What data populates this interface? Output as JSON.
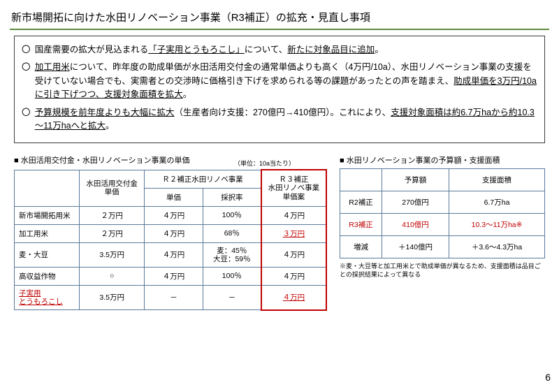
{
  "title": "新市場開拓に向けた水田リノベーション事業（R3補正）の拡充・見直し事項",
  "bullets": {
    "b1_pre": "国産需要の拡大が見込まれる",
    "b1_u": "「子実用とうもろこし」",
    "b1_mid": "について、",
    "b1_u2": "新たに対象品目に追加",
    "b1_post": "。",
    "b2_u1": "加工用米",
    "b2_a": "について、昨年度の助成単価が水田活用交付金の通常単価よりも高く（4万円/10a）、水田リノベーション事業の支援を受けていない場合でも、実需者との交渉時に価格引き下げを求められる等の課題があったとの声を踏まえ、",
    "b2_u2": "助成単価を3万円/10aに引き下げつつ、支援対象面積を拡大",
    "b2_b": "。",
    "b3_u1": "予算規模を前年度よりも大幅に拡大",
    "b3_a": "（生産者向け支援：270億円→410億円）。これにより、",
    "b3_u2": "支援対象面積は約6.7万haから約10.3～11万haへと拡大",
    "b3_b": "。"
  },
  "left": {
    "title": "■ 水田活用交付金・水田リノベーション事業の単価",
    "unit": "（単位：10a当たり）",
    "table": {
      "hd_kofukin": "水田活用交付金\n単価",
      "hd_r2": "Ｒ２補正水田リノベ事業",
      "hd_tanka": "単価",
      "hd_saitaku": "採択率",
      "hd_r3": "Ｒ３補正\n水田リノベ事業\n単価案",
      "rows": [
        {
          "name": "新市場開拓用米",
          "a": "２万円",
          "b": "４万円",
          "c": "100％",
          "d": "４万円",
          "red": false,
          "rowred": false
        },
        {
          "name": "加工用米",
          "a": "２万円",
          "b": "４万円",
          "c": "68％",
          "d": "３万円",
          "red": true,
          "rowred": false
        },
        {
          "name": "麦・大豆",
          "a": "3.5万円",
          "b": "４万円",
          "c": "麦：45％\n大豆：59％",
          "d": "４万円",
          "red": false,
          "rowred": false
        },
        {
          "name": "高収益作物",
          "a": "○",
          "b": "４万円",
          "c": "100％",
          "d": "４万円",
          "red": false,
          "rowred": false
        },
        {
          "name": "子実用\nとうもろこし",
          "a": "3.5万円",
          "b": "－",
          "c": "－",
          "d": "４万円",
          "red": true,
          "rowred": true
        }
      ]
    }
  },
  "right": {
    "title": "■ 水田リノベーション事業の予算額・支援面積",
    "table": {
      "hd_yosan": "予算額",
      "hd_menseki": "支援面積",
      "rows": [
        {
          "name": "R2補正",
          "a": "270億円",
          "b": "6.7万ha",
          "red": false
        },
        {
          "name": "R3補正",
          "a": "410億円",
          "b": "10.3～11万ha※",
          "red": true
        },
        {
          "name": "増減",
          "a": "＋140億円",
          "b": "＋3.6～4.3万ha",
          "red": false
        }
      ]
    },
    "note": "※麦・大豆等と加工用米とで助成単価が異なるため、支援面積は品目ごとの採択結果によって異なる"
  },
  "page": "6"
}
